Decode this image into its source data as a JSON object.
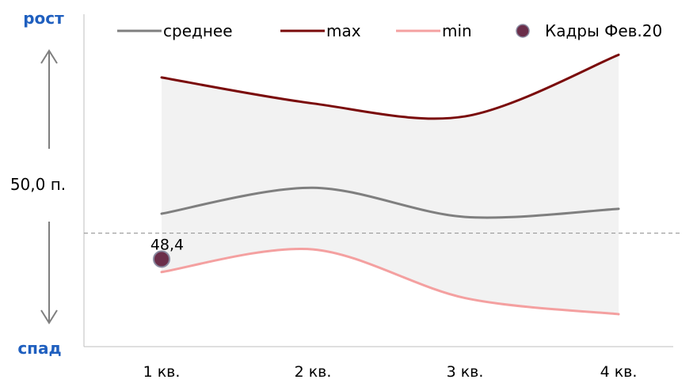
{
  "chart_data": {
    "type": "line",
    "title": "",
    "xlabel": "",
    "ylabel": "",
    "categories": [
      "1 кв.",
      "2 кв.",
      "3 кв.",
      "4 кв."
    ],
    "series": [
      {
        "name": "среднее",
        "values": [
          51.2,
          52.8,
          51.0,
          51.5
        ],
        "color": "#7f7f7f"
      },
      {
        "name": "max",
        "values": [
          59.6,
          58.0,
          57.2,
          61.0
        ],
        "color": "#7a0a0a"
      },
      {
        "name": "min",
        "values": [
          47.6,
          49.0,
          46.0,
          45.0
        ],
        "color": "#f4a0a0"
      }
    ],
    "band": {
      "from_series": "min",
      "to_series": "max",
      "color": "#f2f2f2"
    },
    "marker": {
      "name": "Кадры Фев.20",
      "category": "1 кв.",
      "value": 48.4,
      "label": "48,4",
      "color": "#6b2e4a"
    },
    "threshold": {
      "value": 50.0,
      "label": "50,0 п."
    },
    "axis_labels": {
      "top": "рост",
      "bottom": "спад",
      "color": "#1f5fbf"
    },
    "legend": [
      "среднее",
      "max",
      "min",
      "Кадры Фев.20"
    ],
    "legend_position": "top",
    "ylim": [
      43.0,
      63.5
    ],
    "grid": false
  }
}
